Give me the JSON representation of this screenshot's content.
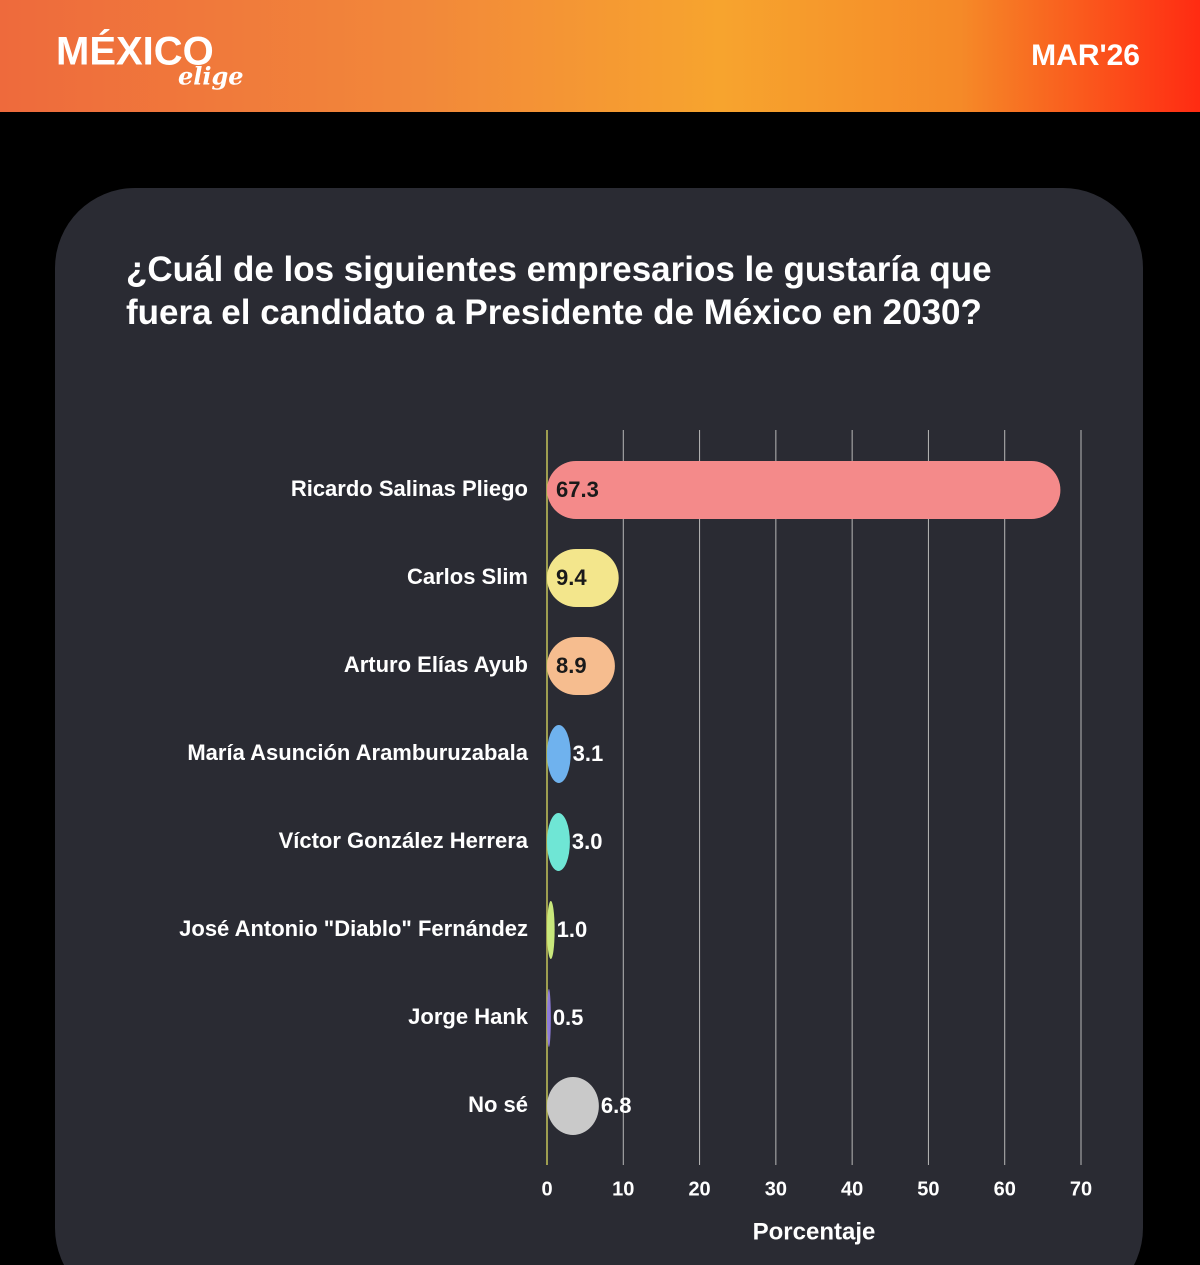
{
  "header": {
    "logo": "MÉXICO",
    "logo_script": "elige",
    "date": "MAR'26"
  },
  "chart_data": {
    "type": "bar",
    "orientation": "horizontal",
    "title": "¿Cuál de los siguientes empresarios le gustaría que fuera el candidato a Presidente de México en 2030?",
    "categories": [
      "Ricardo Salinas Pliego",
      "Carlos Slim",
      "Arturo Elías Ayub",
      "María Asunción Aramburuzabala",
      "Víctor González Herrera",
      "José Antonio \"Diablo\" Fernández",
      "Jorge Hank",
      "No sé"
    ],
    "values": [
      67.3,
      9.4,
      8.9,
      3.1,
      3.0,
      1.0,
      0.5,
      6.8
    ],
    "value_labels": [
      "67.3",
      "9.4",
      "8.9",
      "3.1",
      "3.0",
      "1.0",
      "0.5",
      "6.8"
    ],
    "colors": [
      "#f48a8a",
      "#f3e68c",
      "#f6bd8f",
      "#6fb2ee",
      "#6fe6d5",
      "#c9e87c",
      "#8d7bd9",
      "#c9c9c9"
    ],
    "xlabel": "Porcentaje",
    "xlim": [
      0,
      70
    ],
    "xticks": [
      0,
      10,
      20,
      30,
      40,
      50,
      60,
      70
    ],
    "grid": true
  }
}
